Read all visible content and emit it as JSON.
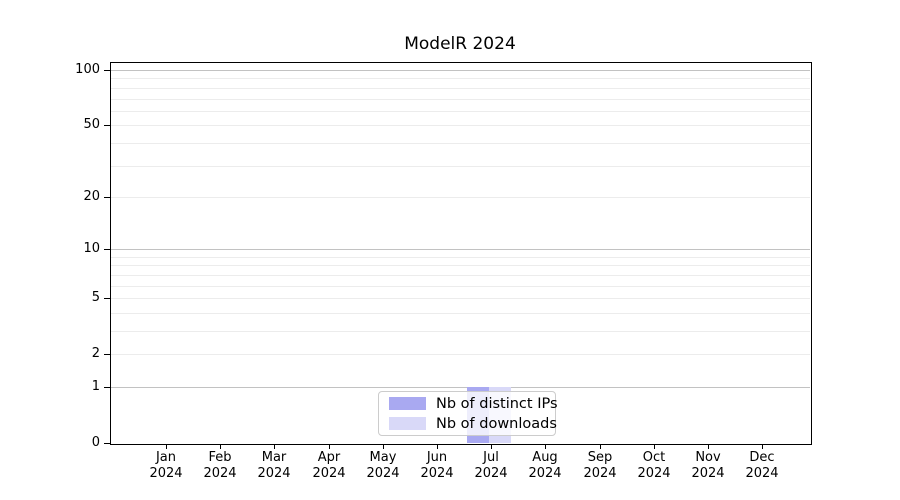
{
  "figure": {
    "title": "ModelR 2024",
    "background_color": "#ffffff",
    "axis_color": "#000000"
  },
  "chart_data": {
    "type": "bar",
    "title": "ModelR 2024",
    "xlabel": "",
    "ylabel": "",
    "categories": [
      "Jan 2024",
      "Feb 2024",
      "Mar 2024",
      "Apr 2024",
      "May 2024",
      "Jun 2024",
      "Jul 2024",
      "Aug 2024",
      "Sep 2024",
      "Oct 2024",
      "Nov 2024",
      "Dec 2024"
    ],
    "months": [
      {
        "abbr": "Jan",
        "year": "2024"
      },
      {
        "abbr": "Feb",
        "year": "2024"
      },
      {
        "abbr": "Mar",
        "year": "2024"
      },
      {
        "abbr": "Apr",
        "year": "2024"
      },
      {
        "abbr": "May",
        "year": "2024"
      },
      {
        "abbr": "Jun",
        "year": "2024"
      },
      {
        "abbr": "Jul",
        "year": "2024"
      },
      {
        "abbr": "Aug",
        "year": "2024"
      },
      {
        "abbr": "Sep",
        "year": "2024"
      },
      {
        "abbr": "Oct",
        "year": "2024"
      },
      {
        "abbr": "Nov",
        "year": "2024"
      },
      {
        "abbr": "Dec",
        "year": "2024"
      }
    ],
    "series": [
      {
        "name": "Nb of distinct IPs",
        "color": "#a9a9f1",
        "values": [
          0,
          0,
          0,
          0,
          0,
          0,
          1,
          0,
          0,
          0,
          0,
          0
        ]
      },
      {
        "name": "Nb of downloads",
        "color": "#d9d9f8",
        "values": [
          0,
          0,
          0,
          0,
          0,
          0,
          1,
          0,
          0,
          0,
          0,
          0
        ]
      }
    ],
    "y_scale": "log10(1+x)",
    "ylim": [
      0,
      100
    ],
    "y_ticks": [
      100,
      50,
      20,
      10,
      5,
      2,
      1,
      0
    ],
    "y_minor_gridline_values": [
      2,
      3,
      4,
      5,
      6,
      7,
      8,
      9,
      20,
      30,
      40,
      50,
      60,
      70,
      80,
      90
    ],
    "y_major_gridline_values": [
      1,
      10,
      100
    ],
    "grid": "horizontal",
    "legend_position": "bottom-center",
    "colors": {
      "minor_gridline": "#ececec",
      "major_gridline": "#c2c2c2",
      "bar_distinct_ips": "#a9a9f1",
      "bar_downloads": "#d9d9f8",
      "legend_border": "#cccccc"
    }
  }
}
